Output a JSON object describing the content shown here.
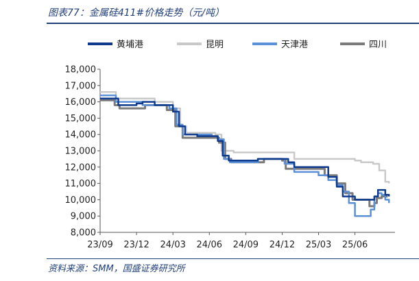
{
  "title": "图表77：金属硅411#价格走势（元/吨）",
  "source": "资料来源：SMM，国盛证券研究所",
  "colors": {
    "frame": "#1f3f7a",
    "series": [
      "#0d3a8c",
      "#c9c9c9",
      "#5b8fd6",
      "#7a7a7a"
    ]
  },
  "chart_data": {
    "type": "line",
    "ylim": [
      8000,
      18000
    ],
    "yticks": [
      8000,
      9000,
      10000,
      11000,
      12000,
      13000,
      14000,
      15000,
      16000,
      17000,
      18000
    ],
    "ytick_labels": [
      "8,000",
      "9,000",
      "10,000",
      "11,000",
      "12,000",
      "13,000",
      "14,000",
      "15,000",
      "16,000",
      "17,000",
      "18,000"
    ],
    "xlim": [
      0,
      24.3
    ],
    "xticks": [
      0,
      3,
      6,
      9,
      12,
      15,
      18,
      21
    ],
    "xtick_labels": [
      "23/09",
      "23/12",
      "24/03",
      "24/06",
      "24/09",
      "24/12",
      "25/03",
      "25/06"
    ],
    "legend_position": "top",
    "series": [
      {
        "name": "黄埔港",
        "color": "#0d3a8c",
        "width": 2.5,
        "points": [
          [
            0,
            16200
          ],
          [
            1,
            16200
          ],
          [
            1.5,
            15800
          ],
          [
            2.5,
            15800
          ],
          [
            3,
            15900
          ],
          [
            3.5,
            16000
          ],
          [
            4.5,
            15800
          ],
          [
            5.5,
            15800
          ],
          [
            6,
            15400
          ],
          [
            6.5,
            14500
          ],
          [
            7,
            14000
          ],
          [
            8,
            13900
          ],
          [
            9,
            13900
          ],
          [
            9.7,
            13600
          ],
          [
            10.1,
            12700
          ],
          [
            10.6,
            12400
          ],
          [
            12,
            12400
          ],
          [
            13,
            12500
          ],
          [
            15,
            12500
          ],
          [
            15.5,
            12300
          ],
          [
            16,
            12000
          ],
          [
            18,
            12000
          ],
          [
            18.8,
            11400
          ],
          [
            19.5,
            10800
          ],
          [
            20,
            10200
          ],
          [
            21,
            10000
          ],
          [
            22,
            10000
          ],
          [
            22.6,
            10200
          ],
          [
            22.9,
            10600
          ],
          [
            23.3,
            10600
          ],
          [
            23.5,
            10300
          ],
          [
            23.8,
            10200
          ]
        ]
      },
      {
        "name": "昆明",
        "color": "#c9c9c9",
        "width": 2.5,
        "points": [
          [
            0,
            16600
          ],
          [
            1,
            16600
          ],
          [
            1.3,
            16200
          ],
          [
            4,
            16200
          ],
          [
            4.5,
            16000
          ],
          [
            5.5,
            16000
          ],
          [
            6,
            15600
          ],
          [
            6.6,
            14500
          ],
          [
            7.1,
            14100
          ],
          [
            9.5,
            14000
          ],
          [
            10,
            13000
          ],
          [
            11,
            12900
          ],
          [
            15.5,
            12900
          ],
          [
            16,
            12500
          ],
          [
            19.5,
            12500
          ],
          [
            20.5,
            12500
          ],
          [
            21,
            12400
          ],
          [
            21.5,
            12300
          ],
          [
            22.5,
            12200
          ],
          [
            23,
            11800
          ],
          [
            23.5,
            11100
          ],
          [
            23.8,
            11000
          ]
        ]
      },
      {
        "name": "天津港",
        "color": "#5b8fd6",
        "width": 2.5,
        "points": [
          [
            0,
            16400
          ],
          [
            1,
            16400
          ],
          [
            1.3,
            16000
          ],
          [
            3,
            16000
          ],
          [
            3.5,
            15800
          ],
          [
            5,
            15800
          ],
          [
            5.7,
            15600
          ],
          [
            6.3,
            14600
          ],
          [
            6.8,
            14000
          ],
          [
            9.2,
            13900
          ],
          [
            9.7,
            13700
          ],
          [
            10.2,
            12500
          ],
          [
            10.7,
            12300
          ],
          [
            12,
            12300
          ],
          [
            13,
            12500
          ],
          [
            14.5,
            12500
          ],
          [
            15.2,
            12200
          ],
          [
            16,
            11700
          ],
          [
            17,
            11700
          ],
          [
            18,
            11500
          ],
          [
            18.8,
            11200
          ],
          [
            19.5,
            10900
          ],
          [
            20,
            10500
          ],
          [
            20.5,
            9800
          ],
          [
            21,
            9000
          ],
          [
            22,
            9000
          ],
          [
            22.3,
            9400
          ],
          [
            22.6,
            10200
          ],
          [
            22.9,
            10400
          ],
          [
            23.2,
            10300
          ],
          [
            23.5,
            10000
          ],
          [
            23.8,
            9800
          ]
        ]
      },
      {
        "name": "四川",
        "color": "#7a7a7a",
        "width": 3,
        "points": [
          [
            0,
            16100
          ],
          [
            0.8,
            16100
          ],
          [
            1.2,
            15800
          ],
          [
            1.6,
            15600
          ],
          [
            3.2,
            15600
          ],
          [
            3.7,
            15800
          ],
          [
            5,
            15800
          ],
          [
            5.5,
            15500
          ],
          [
            6.2,
            14500
          ],
          [
            6.8,
            13800
          ],
          [
            9.2,
            13800
          ],
          [
            9.8,
            13500
          ],
          [
            10.3,
            12500
          ],
          [
            10.8,
            12300
          ],
          [
            12.5,
            12300
          ],
          [
            13.5,
            12500
          ],
          [
            15,
            12400
          ],
          [
            15.3,
            11900
          ],
          [
            17,
            11900
          ],
          [
            18.5,
            11500
          ],
          [
            19.5,
            11000
          ],
          [
            20.2,
            10400
          ],
          [
            20.8,
            10000
          ],
          [
            21.7,
            10000
          ],
          [
            22.2,
            9600
          ],
          [
            22.6,
            9800
          ],
          [
            22.8,
            10100
          ],
          [
            23.2,
            10200
          ],
          [
            23.7,
            10200
          ]
        ]
      }
    ]
  }
}
